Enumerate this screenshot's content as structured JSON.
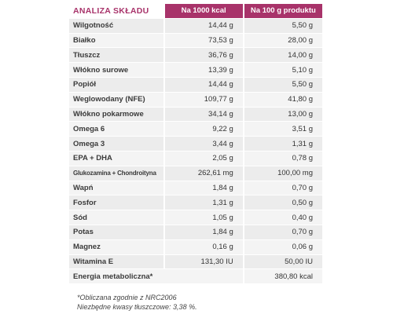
{
  "table": {
    "title": "ANALIZA SKŁADU",
    "columns": [
      "Na 1000 kcal",
      "Na 100 g produktu"
    ],
    "rows": [
      [
        "Wilgotność",
        "14,44 g",
        "5,50 g"
      ],
      [
        "Białko",
        "73,53 g",
        "28,00 g"
      ],
      [
        "Tłuszcz",
        "36,76 g",
        "14,00 g"
      ],
      [
        "Włókno surowe",
        "13,39 g",
        "5,10 g"
      ],
      [
        "Popiół",
        "14,44 g",
        "5,50 g"
      ],
      [
        "Weglowodany (NFE)",
        "109,77 g",
        "41,80 g"
      ],
      [
        "Włókno pokarmowe",
        "34,14 g",
        "13,00 g"
      ],
      [
        "Omega 6",
        "9,22 g",
        "3,51 g"
      ],
      [
        "Omega 3",
        "3,44 g",
        "1,31 g"
      ],
      [
        "EPA + DHA",
        "2,05 g",
        "0,78 g"
      ],
      [
        "Glukozamina + Chondroityna",
        "262,61 mg",
        "100,00 mg"
      ],
      [
        "Wapń",
        "1,84 g",
        "0,70 g"
      ],
      [
        "Fosfor",
        "1,31 g",
        "0,50 g"
      ],
      [
        "Sód",
        "1,05 g",
        "0,40 g"
      ],
      [
        "Potas",
        "1,84 g",
        "0,70 g"
      ],
      [
        "Magnez",
        "0,16 g",
        "0,06 g"
      ],
      [
        "Witamina E",
        "131,30 IU",
        "50,00 IU"
      ]
    ],
    "energy": {
      "label": "Energia metaboliczna*",
      "value": "380,80 kcal"
    }
  },
  "notes": [
    "*Obliczana zgodnie z NRC2006",
    "Niezbędne kwasy tłuszczowe: 3,38 %."
  ]
}
